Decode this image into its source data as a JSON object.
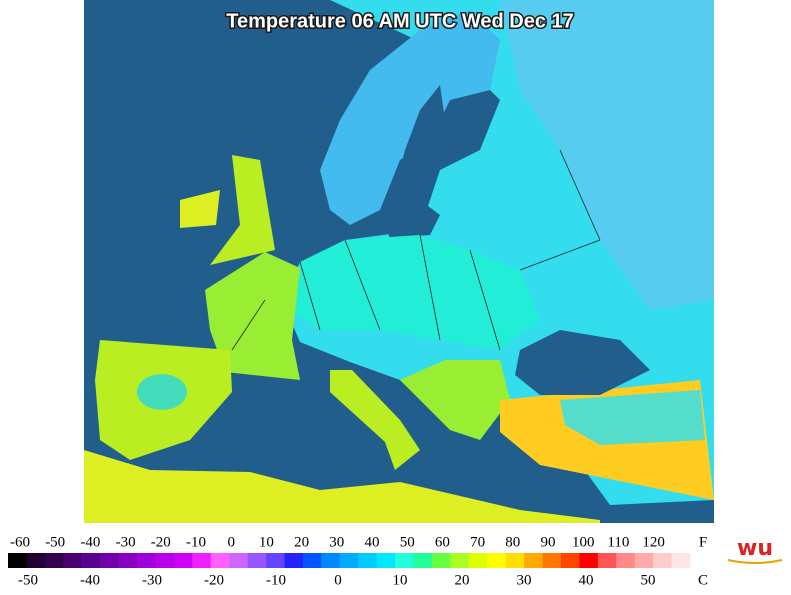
{
  "title": "Temperature 06 AM UTC Wed Dec 17",
  "scale": {
    "fahrenheit": {
      "labels": [
        -60,
        -50,
        -40,
        -30,
        -20,
        -10,
        0,
        10,
        20,
        30,
        40,
        50,
        60,
        70,
        80,
        90,
        100,
        110,
        120
      ],
      "unit": "F"
    },
    "celsius": {
      "labels": [
        -50,
        -40,
        -30,
        -20,
        -10,
        0,
        10,
        20,
        30,
        40,
        50
      ],
      "unit": "C"
    },
    "colors": [
      "#000000",
      "#200030",
      "#330050",
      "#480070",
      "#5c0090",
      "#7200a8",
      "#8800c0",
      "#a000d8",
      "#b800e8",
      "#d000f8",
      "#ee20ff",
      "#ff60ff",
      "#cc66ff",
      "#9955ff",
      "#6644ff",
      "#2222ff",
      "#0055ff",
      "#0088ff",
      "#00aaff",
      "#00ccff",
      "#00e8ff",
      "#22ffdd",
      "#22ff99",
      "#66ff44",
      "#aaff22",
      "#ddff00",
      "#ffff00",
      "#ffdd00",
      "#ffaa00",
      "#ff7700",
      "#ff4400",
      "#ff0000",
      "#ff5555",
      "#ff8888",
      "#ffaaaa",
      "#ffcccc",
      "#ffe6e6"
    ]
  },
  "logo": "wu"
}
